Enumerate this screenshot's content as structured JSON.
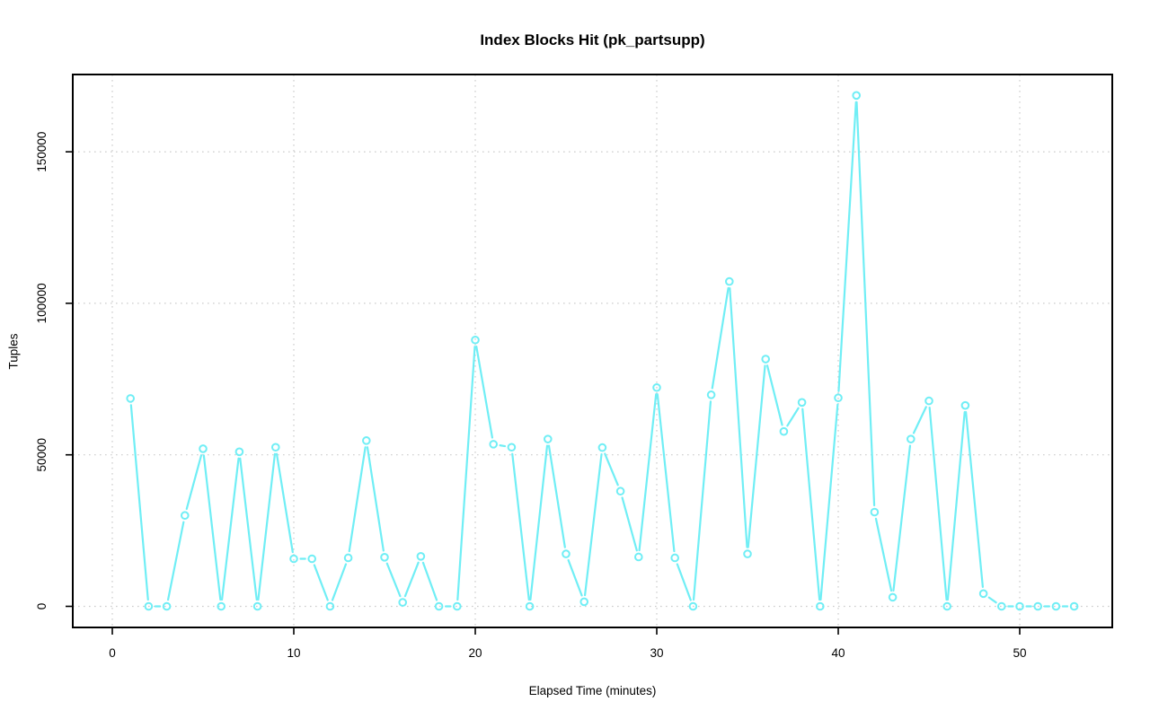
{
  "chart_data": {
    "type": "line",
    "title": "Index Blocks Hit (pk_partsupp)",
    "xlabel": "Elapsed Time (minutes)",
    "ylabel": "Tuples",
    "x_ticks": [
      0,
      10,
      20,
      30,
      40,
      50
    ],
    "y_ticks": [
      0,
      50000,
      100000,
      150000
    ],
    "xlim": [
      -1,
      55
    ],
    "ylim": [
      -7000,
      176000
    ],
    "grid": "dotted",
    "grid_color": "#cccccc",
    "box_color": "#000000",
    "marker": "open-circle",
    "series": [
      {
        "name": "index-blocks-hit",
        "color": "#70eef5",
        "x": [
          1,
          2,
          3,
          4,
          5,
          6,
          7,
          8,
          9,
          10,
          11,
          12,
          13,
          14,
          15,
          16,
          17,
          18,
          19,
          20,
          21,
          22,
          23,
          24,
          25,
          26,
          27,
          28,
          29,
          30,
          31,
          32,
          33,
          34,
          35,
          36,
          37,
          38,
          39,
          40,
          41,
          42,
          43,
          44,
          45,
          46,
          47,
          48,
          49,
          50,
          51,
          52,
          53
        ],
        "y": [
          68600,
          0,
          0,
          30000,
          52000,
          0,
          51000,
          0,
          52500,
          15700,
          15700,
          0,
          16000,
          54700,
          16200,
          1300,
          16500,
          0,
          0,
          87900,
          53500,
          52500,
          0,
          55200,
          17300,
          1500,
          52400,
          38000,
          16300,
          72200,
          16000,
          0,
          69800,
          107200,
          17300,
          81600,
          57700,
          67300,
          0,
          68800,
          168600,
          31100,
          3000,
          55200,
          67800,
          0,
          66300,
          4200,
          0,
          0,
          0,
          0,
          0
        ]
      }
    ]
  }
}
